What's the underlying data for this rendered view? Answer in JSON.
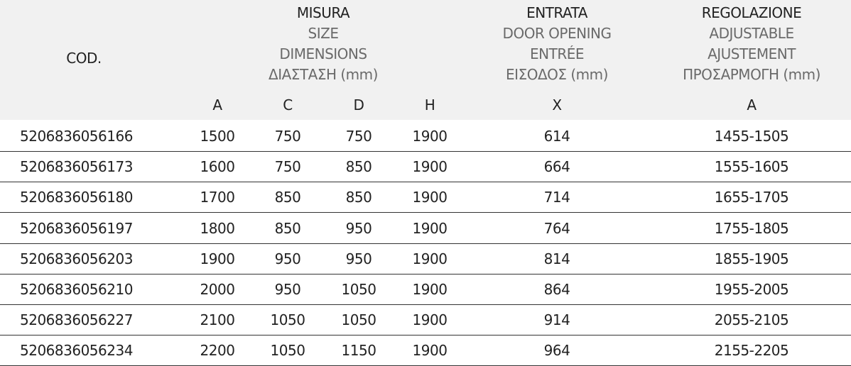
{
  "header": {
    "code": "COD.",
    "size": [
      "MISURA",
      "SIZE",
      "DIMENSIONS",
      "ΔΙΑΣΤΑΣΗ (mm)"
    ],
    "opening": [
      "ENTRATA",
      "DOOR OPENING",
      "ENTRÉE",
      "ΕΙΣΟΔΟΣ (mm)"
    ],
    "adjust": [
      "REGOLAZIONE",
      "ADJUSTABLE",
      "AJUSTEMENT",
      "ΠΡΟΣΑΡΜΟΓΗ (mm)"
    ],
    "sub": [
      "A",
      "C",
      "D",
      "H",
      "X",
      "A"
    ]
  },
  "rows": [
    [
      "5206836056166",
      "1500",
      "750",
      "750",
      "1900",
      "614",
      "1455-1505"
    ],
    [
      "5206836056173",
      "1600",
      "750",
      "850",
      "1900",
      "664",
      "1555-1605"
    ],
    [
      "5206836056180",
      "1700",
      "850",
      "850",
      "1900",
      "714",
      "1655-1705"
    ],
    [
      "5206836056197",
      "1800",
      "850",
      "950",
      "1900",
      "764",
      "1755-1805"
    ],
    [
      "5206836056203",
      "1900",
      "950",
      "950",
      "1900",
      "814",
      "1855-1905"
    ],
    [
      "5206836056210",
      "2000",
      "950",
      "1050",
      "1900",
      "864",
      "1955-2005"
    ],
    [
      "5206836056227",
      "2100",
      "1050",
      "1050",
      "1900",
      "914",
      "2055-2105"
    ],
    [
      "5206836056234",
      "2200",
      "1050",
      "1150",
      "1900",
      "964",
      "2155-2205"
    ]
  ]
}
